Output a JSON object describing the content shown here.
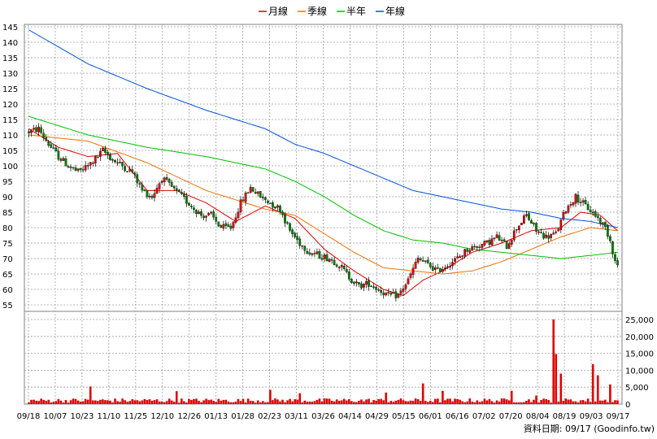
{
  "chart_data": [
    {
      "type": "candlestick",
      "legend": [
        {
          "name": "月線",
          "color": "#e00000"
        },
        {
          "name": "季線",
          "color": "#f07000"
        },
        {
          "name": "半年",
          "color": "#00c000"
        },
        {
          "name": "年線",
          "color": "#0050e0"
        }
      ],
      "colors": {
        "up": "#e00000",
        "down": "#008000",
        "grid": "#a0a0a0"
      },
      "y_axis": {
        "min": 55,
        "max": 145,
        "ticks": [
          55,
          60,
          65,
          70,
          75,
          80,
          85,
          90,
          95,
          100,
          105,
          110,
          115,
          120,
          125,
          130,
          135,
          140,
          145
        ]
      },
      "x_ticks": [
        "09/18",
        "10/07",
        "10/23",
        "11/10",
        "11/25",
        "12/10",
        "12/26",
        "01/13",
        "01/28",
        "02/23",
        "03/11",
        "03/26",
        "04/14",
        "04/29",
        "05/15",
        "06/01",
        "06/16",
        "07/02",
        "07/20",
        "08/04",
        "08/19",
        "09/03",
        "09/17"
      ],
      "sessions": 240,
      "price_anchors": [
        [
          0,
          111
        ],
        [
          4,
          112
        ],
        [
          8,
          107
        ],
        [
          12,
          103
        ],
        [
          16,
          100
        ],
        [
          20,
          98
        ],
        [
          24,
          100
        ],
        [
          28,
          103
        ],
        [
          30,
          105
        ],
        [
          34,
          102
        ],
        [
          38,
          100
        ],
        [
          42,
          98
        ],
        [
          46,
          92
        ],
        [
          50,
          90
        ],
        [
          54,
          96
        ],
        [
          58,
          93
        ],
        [
          62,
          90
        ],
        [
          66,
          87
        ],
        [
          70,
          84
        ],
        [
          74,
          84
        ],
        [
          78,
          80
        ],
        [
          82,
          80
        ],
        [
          86,
          88
        ],
        [
          90,
          93
        ],
        [
          94,
          90
        ],
        [
          98,
          88
        ],
        [
          102,
          86
        ],
        [
          106,
          79
        ],
        [
          110,
          75
        ],
        [
          114,
          72
        ],
        [
          118,
          71
        ],
        [
          122,
          70
        ],
        [
          126,
          68
        ],
        [
          130,
          64
        ],
        [
          134,
          61
        ],
        [
          138,
          62
        ],
        [
          142,
          60
        ],
        [
          146,
          58
        ],
        [
          150,
          58
        ],
        [
          154,
          63
        ],
        [
          158,
          70
        ],
        [
          162,
          68
        ],
        [
          166,
          66
        ],
        [
          170,
          68
        ],
        [
          174,
          70
        ],
        [
          178,
          73
        ],
        [
          182,
          74
        ],
        [
          186,
          75
        ],
        [
          190,
          77
        ],
        [
          194,
          74
        ],
        [
          198,
          80
        ],
        [
          202,
          84
        ],
        [
          206,
          79
        ],
        [
          210,
          77
        ],
        [
          214,
          78
        ],
        [
          218,
          86
        ],
        [
          222,
          90
        ],
        [
          226,
          87
        ],
        [
          230,
          84
        ],
        [
          234,
          80
        ],
        [
          236,
          76
        ],
        [
          238,
          69
        ],
        [
          239,
          68
        ]
      ],
      "moving_averages": {
        "月線": [
          [
            0,
            112
          ],
          [
            12,
            106
          ],
          [
            24,
            103
          ],
          [
            36,
            104
          ],
          [
            48,
            92
          ],
          [
            60,
            92
          ],
          [
            72,
            88
          ],
          [
            84,
            82
          ],
          [
            96,
            87
          ],
          [
            108,
            83
          ],
          [
            120,
            73
          ],
          [
            132,
            66
          ],
          [
            144,
            60
          ],
          [
            152,
            58
          ],
          [
            160,
            63
          ],
          [
            168,
            66
          ],
          [
            180,
            72
          ],
          [
            192,
            75
          ],
          [
            204,
            79
          ],
          [
            216,
            80
          ],
          [
            224,
            85
          ],
          [
            232,
            84
          ],
          [
            239,
            79
          ]
        ],
        "季線": [
          [
            0,
            110
          ],
          [
            24,
            108
          ],
          [
            48,
            101
          ],
          [
            72,
            92
          ],
          [
            96,
            86
          ],
          [
            108,
            84
          ],
          [
            120,
            78
          ],
          [
            132,
            72
          ],
          [
            144,
            67
          ],
          [
            156,
            66
          ],
          [
            168,
            65
          ],
          [
            180,
            66
          ],
          [
            192,
            69
          ],
          [
            204,
            73
          ],
          [
            216,
            77
          ],
          [
            228,
            80
          ],
          [
            239,
            79
          ]
        ],
        "半年": [
          [
            0,
            116
          ],
          [
            24,
            110
          ],
          [
            48,
            106
          ],
          [
            72,
            103
          ],
          [
            96,
            99
          ],
          [
            108,
            95
          ],
          [
            120,
            90
          ],
          [
            132,
            84
          ],
          [
            144,
            79
          ],
          [
            156,
            76
          ],
          [
            168,
            75
          ],
          [
            180,
            73
          ],
          [
            192,
            72
          ],
          [
            204,
            71
          ],
          [
            216,
            70
          ],
          [
            228,
            71
          ],
          [
            239,
            72
          ]
        ],
        "年線": [
          [
            0,
            144
          ],
          [
            24,
            133
          ],
          [
            48,
            125
          ],
          [
            72,
            118
          ],
          [
            96,
            112
          ],
          [
            108,
            107
          ],
          [
            120,
            104
          ],
          [
            132,
            100
          ],
          [
            144,
            96
          ],
          [
            156,
            92
          ],
          [
            168,
            90
          ],
          [
            180,
            88
          ],
          [
            192,
            86
          ],
          [
            204,
            85
          ],
          [
            216,
            83
          ],
          [
            228,
            82
          ],
          [
            239,
            80
          ]
        ]
      },
      "volume_axis": {
        "min": 0,
        "max": 25000,
        "ticks": [
          0,
          5000,
          10000,
          15000,
          20000,
          25000
        ],
        "tick_labels": [
          "0",
          "5,000",
          "10,000",
          "15,000",
          "20,000",
          "25,000"
        ]
      },
      "volume_spikes": [
        [
          25,
          5200
        ],
        [
          60,
          3800
        ],
        [
          98,
          4200
        ],
        [
          110,
          3200
        ],
        [
          145,
          3400
        ],
        [
          160,
          6100
        ],
        [
          168,
          3900
        ],
        [
          196,
          3900
        ],
        [
          206,
          2500
        ],
        [
          213,
          25000
        ],
        [
          214,
          14800
        ],
        [
          216,
          9000
        ],
        [
          229,
          11800
        ],
        [
          231,
          8500
        ],
        [
          236,
          5800
        ]
      ]
    }
  ],
  "footer": {
    "text": "資料日期: 09/17  (Goodinfo.tw)"
  }
}
